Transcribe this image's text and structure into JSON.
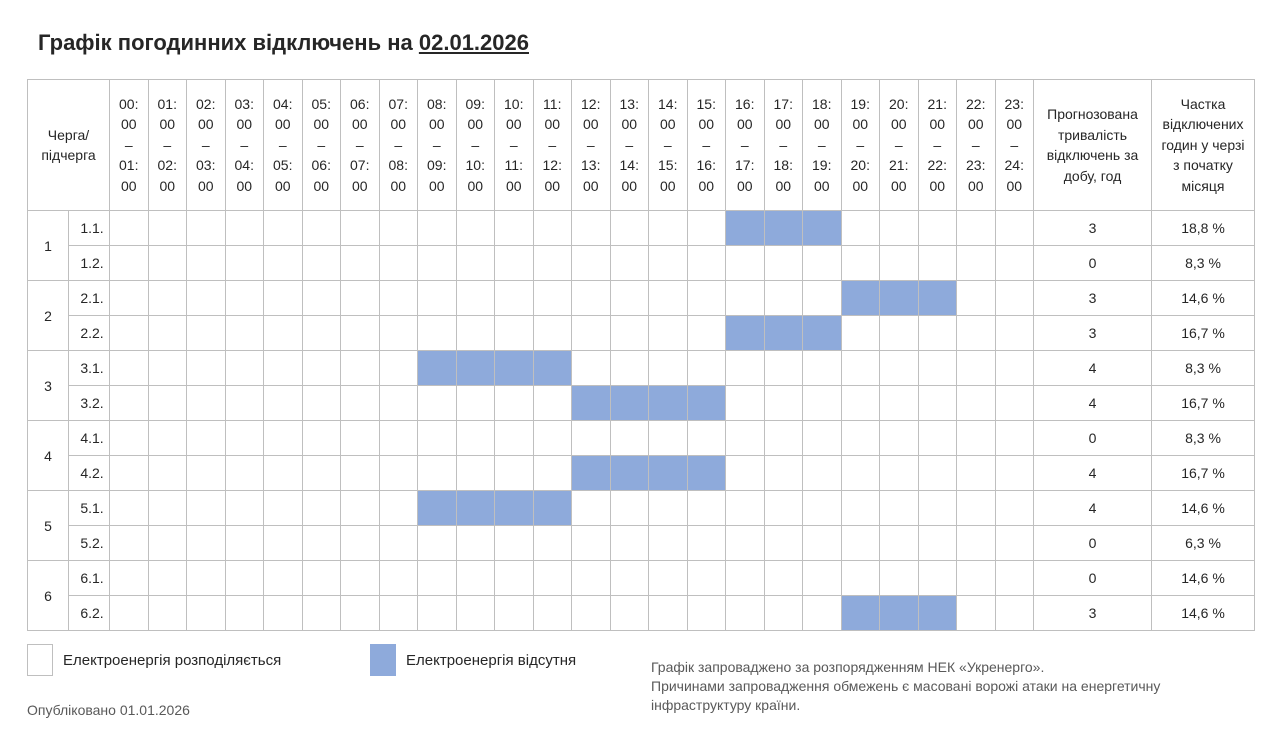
{
  "title": {
    "prefix": "Графік погодинних відключень на",
    "date": "02.01.2026"
  },
  "header": {
    "queue": [
      "Черга/",
      "підчерга"
    ],
    "hours": [
      [
        "00:",
        "00",
        "–",
        "01:",
        "00"
      ],
      [
        "01:",
        "00",
        "–",
        "02:",
        "00"
      ],
      [
        "02:",
        "00",
        "–",
        "03:",
        "00"
      ],
      [
        "03:",
        "00",
        "–",
        "04:",
        "00"
      ],
      [
        "04:",
        "00",
        "–",
        "05:",
        "00"
      ],
      [
        "05:",
        "00",
        "–",
        "06:",
        "00"
      ],
      [
        "06:",
        "00",
        "–",
        "07:",
        "00"
      ],
      [
        "07:",
        "00",
        "–",
        "08:",
        "00"
      ],
      [
        "08:",
        "00",
        "–",
        "09:",
        "00"
      ],
      [
        "09:",
        "00",
        "–",
        "10:",
        "00"
      ],
      [
        "10:",
        "00",
        "–",
        "11:",
        "00"
      ],
      [
        "11:",
        "00",
        "–",
        "12:",
        "00"
      ],
      [
        "12:",
        "00",
        "–",
        "13:",
        "00"
      ],
      [
        "13:",
        "00",
        "–",
        "14:",
        "00"
      ],
      [
        "14:",
        "00",
        "–",
        "15:",
        "00"
      ],
      [
        "15:",
        "00",
        "–",
        "16:",
        "00"
      ],
      [
        "16:",
        "00",
        "–",
        "17:",
        "00"
      ],
      [
        "17:",
        "00",
        "–",
        "18:",
        "00"
      ],
      [
        "18:",
        "00",
        "–",
        "19:",
        "00"
      ],
      [
        "19:",
        "00",
        "–",
        "20:",
        "00"
      ],
      [
        "20:",
        "00",
        "–",
        "21:",
        "00"
      ],
      [
        "21:",
        "00",
        "–",
        "22:",
        "00"
      ],
      [
        "22:",
        "00",
        "–",
        "23:",
        "00"
      ],
      [
        "23:",
        "00",
        "–",
        "24:",
        "00"
      ]
    ],
    "forecast": [
      "Прогнозована",
      "тривалість",
      "відключень за",
      "добу, год"
    ],
    "share": [
      "Частка",
      "відключених",
      "годин у черзі",
      "з початку",
      "місяця"
    ]
  },
  "queues": [
    {
      "label": "1",
      "subqueues": [
        {
          "label": "1.1.",
          "off_hours": [
            16,
            17,
            18
          ],
          "forecast": "3",
          "share": "18,8 %"
        },
        {
          "label": "1.2.",
          "off_hours": [],
          "forecast": "0",
          "share": "8,3 %"
        }
      ]
    },
    {
      "label": "2",
      "subqueues": [
        {
          "label": "2.1.",
          "off_hours": [
            19,
            20,
            21
          ],
          "forecast": "3",
          "share": "14,6 %"
        },
        {
          "label": "2.2.",
          "off_hours": [
            16,
            17,
            18
          ],
          "forecast": "3",
          "share": "16,7 %"
        }
      ]
    },
    {
      "label": "3",
      "subqueues": [
        {
          "label": "3.1.",
          "off_hours": [
            8,
            9,
            10,
            11
          ],
          "forecast": "4",
          "share": "8,3 %"
        },
        {
          "label": "3.2.",
          "off_hours": [
            12,
            13,
            14,
            15
          ],
          "forecast": "4",
          "share": "16,7 %"
        }
      ]
    },
    {
      "label": "4",
      "subqueues": [
        {
          "label": "4.1.",
          "off_hours": [],
          "forecast": "0",
          "share": "8,3 %"
        },
        {
          "label": "4.2.",
          "off_hours": [
            12,
            13,
            14,
            15
          ],
          "forecast": "4",
          "share": "16,7 %"
        }
      ]
    },
    {
      "label": "5",
      "subqueues": [
        {
          "label": "5.1.",
          "off_hours": [
            8,
            9,
            10,
            11
          ],
          "forecast": "4",
          "share": "14,6 %"
        },
        {
          "label": "5.2.",
          "off_hours": [],
          "forecast": "0",
          "share": "6,3 %"
        }
      ]
    },
    {
      "label": "6",
      "subqueues": [
        {
          "label": "6.1.",
          "off_hours": [],
          "forecast": "0",
          "share": "14,6 %"
        },
        {
          "label": "6.2.",
          "off_hours": [
            19,
            20,
            21
          ],
          "forecast": "3",
          "share": "14,6 %"
        }
      ]
    }
  ],
  "legend": {
    "on_label": "Електроенергія розподіляється",
    "off_label": "Електроенергія відсутня",
    "off_color": "#8eaadb"
  },
  "published": "Опубліковано 01.01.2026",
  "note": [
    "Графік запроваджено за розпорядженням НЕК «Укренерго».",
    "Причинами запровадження обмежень є масовані ворожі атаки на енергетичну",
    "інфраструктуру країни."
  ]
}
